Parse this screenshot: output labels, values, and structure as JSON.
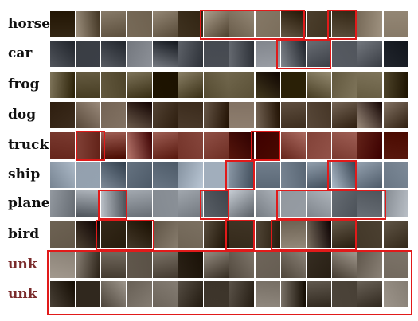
{
  "rows": [
    {
      "label": "horse",
      "key": "horse",
      "tint": "#6f6250",
      "unknown": false
    },
    {
      "label": "car",
      "key": "car",
      "tint": "#5d6168",
      "unknown": false
    },
    {
      "label": "frog",
      "key": "frog",
      "tint": "#5a5036",
      "unknown": false
    },
    {
      "label": "dog",
      "key": "dog",
      "tint": "#5e4e3f",
      "unknown": false
    },
    {
      "label": "truck",
      "key": "truck",
      "tint": "#7a3a30",
      "unknown": false
    },
    {
      "label": "ship",
      "key": "ship",
      "tint": "#7d8a98",
      "unknown": false
    },
    {
      "label": "plane",
      "key": "plane",
      "tint": "#8a9097",
      "unknown": false
    },
    {
      "label": "bird",
      "key": "bird",
      "tint": "#574c3d",
      "unknown": false
    },
    {
      "label": "unk",
      "key": "unk-1",
      "tint": "#665d52",
      "unknown": true
    },
    {
      "label": "unk",
      "key": "unk-2",
      "tint": "#60584e",
      "unknown": true
    }
  ],
  "colors": {
    "highlight": "#e11a1a",
    "unknown_label": "#7a2a2a",
    "label": "#111111"
  }
}
